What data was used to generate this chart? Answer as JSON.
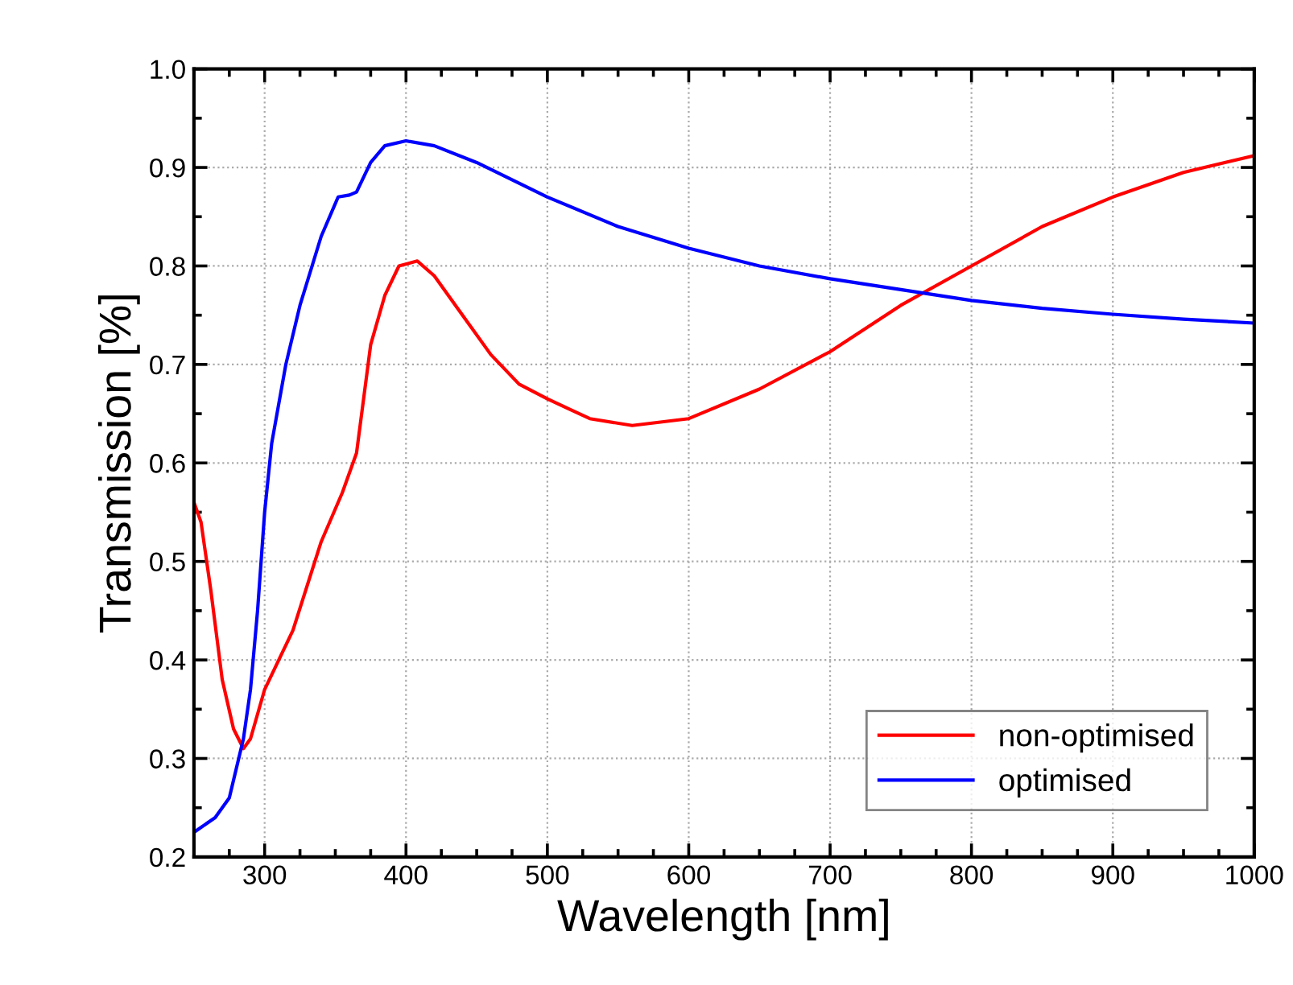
{
  "chart_data": {
    "type": "line",
    "xlabel": "Wavelength [nm]",
    "ylabel": "Transmission [%]",
    "xlim": [
      250,
      1000
    ],
    "xticks": [
      {
        "value": 250,
        "label": null
      },
      300,
      400,
      500,
      600,
      700,
      800,
      900,
      1000
    ],
    "ylim": [
      0.2,
      1.0
    ],
    "yticks": [
      0.2,
      0.3,
      0.4,
      0.5,
      0.6,
      0.7,
      0.8,
      0.9,
      {
        "value": 1,
        "label": "1.0"
      }
    ],
    "grid": true,
    "legend": "bottom right",
    "line_style": "solid",
    "marker": "none",
    "series": [
      {
        "name": "non-optimised",
        "color": "#ff0000",
        "x": [
          250,
          255,
          262,
          270,
          278,
          285,
          290,
          300,
          320,
          340,
          355,
          365,
          375,
          385,
          395,
          408,
          420,
          440,
          460,
          480,
          500,
          530,
          560,
          600,
          650,
          700,
          750,
          800,
          850,
          900,
          950,
          1000
        ],
        "values": [
          0.56,
          0.54,
          0.47,
          0.38,
          0.33,
          0.31,
          0.32,
          0.37,
          0.43,
          0.52,
          0.57,
          0.61,
          0.72,
          0.77,
          0.8,
          0.805,
          0.79,
          0.75,
          0.71,
          0.68,
          0.665,
          0.645,
          0.638,
          0.645,
          0.675,
          0.713,
          0.76,
          0.8,
          0.84,
          0.87,
          0.895,
          0.912
        ]
      },
      {
        "name": "optimised",
        "color": "#0000ff",
        "x": [
          250,
          265,
          275,
          285,
          290,
          295,
          300,
          305,
          315,
          325,
          340,
          352,
          360,
          365,
          375,
          385,
          400,
          420,
          450,
          500,
          550,
          600,
          650,
          700,
          750,
          800,
          850,
          900,
          950,
          1000
        ],
        "values": [
          0.225,
          0.24,
          0.26,
          0.32,
          0.37,
          0.45,
          0.55,
          0.62,
          0.7,
          0.76,
          0.83,
          0.87,
          0.872,
          0.875,
          0.905,
          0.922,
          0.927,
          0.922,
          0.905,
          0.87,
          0.84,
          0.818,
          0.8,
          0.787,
          0.776,
          0.765,
          0.757,
          0.751,
          0.746,
          0.742
        ]
      }
    ]
  }
}
